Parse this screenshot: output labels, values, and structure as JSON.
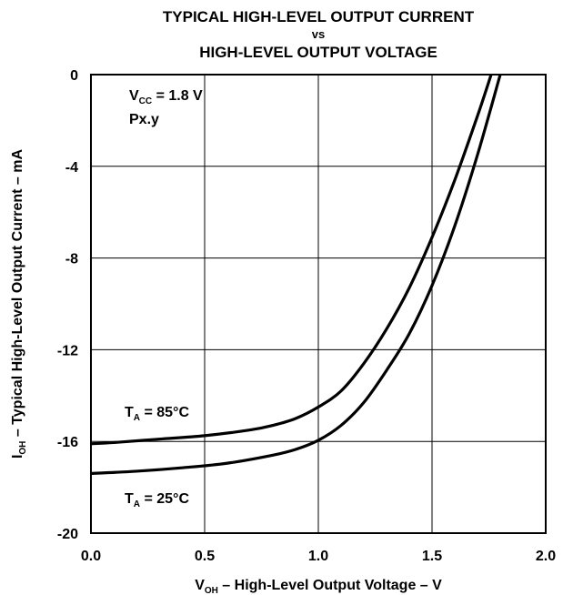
{
  "chart_data": {
    "type": "line",
    "title_line1": "TYPICAL HIGH-LEVEL OUTPUT CURRENT",
    "title_line2": "vs",
    "title_line3": "HIGH-LEVEL OUTPUT VOLTAGE",
    "xlabel": {
      "main": "V",
      "sub": "OH",
      "rest": " – High-Level Output Voltage – V"
    },
    "ylabel": {
      "main": "I",
      "sub": "OH",
      "rest": " – Typical High-Level Output Current – mA"
    },
    "xlim": [
      0,
      2
    ],
    "ylim": [
      -20,
      0
    ],
    "x_ticks": [
      0,
      0.5,
      1,
      1.5,
      2
    ],
    "x_tick_labels": [
      "0.0",
      "0.5",
      "1.0",
      "1.5",
      "2.0"
    ],
    "y_ticks": [
      0,
      -4,
      -8,
      -12,
      -16,
      -20
    ],
    "y_tick_labels": [
      "0",
      "-4",
      "-8",
      "-12",
      "-16",
      "-20"
    ],
    "grid": true,
    "annotations": {
      "vcc": {
        "main": "V",
        "sub": "CC",
        "rest": " = 1.8 V"
      },
      "port": "Px.y"
    },
    "series": [
      {
        "label": {
          "main": "T",
          "sub": "A",
          "rest": " = 85°C"
        },
        "x": [
          0,
          0.1,
          0.3,
          0.5,
          0.7,
          0.8,
          0.9,
          1.0,
          1.1,
          1.2,
          1.3,
          1.4,
          1.5,
          1.6,
          1.7,
          1.76
        ],
        "y": [
          -16.1,
          -16.05,
          -15.9,
          -15.75,
          -15.5,
          -15.3,
          -15.0,
          -14.5,
          -13.8,
          -12.6,
          -11.1,
          -9.3,
          -7.1,
          -4.6,
          -1.8,
          0
        ]
      },
      {
        "label": {
          "main": "T",
          "sub": "A",
          "rest": " = 25°C"
        },
        "x": [
          0,
          0.2,
          0.4,
          0.6,
          0.8,
          0.9,
          1.0,
          1.1,
          1.2,
          1.3,
          1.4,
          1.5,
          1.6,
          1.7,
          1.8
        ],
        "y": [
          -17.4,
          -17.3,
          -17.15,
          -16.95,
          -16.6,
          -16.35,
          -15.95,
          -15.3,
          -14.3,
          -12.9,
          -11.3,
          -9.2,
          -6.6,
          -3.5,
          0
        ]
      }
    ]
  }
}
